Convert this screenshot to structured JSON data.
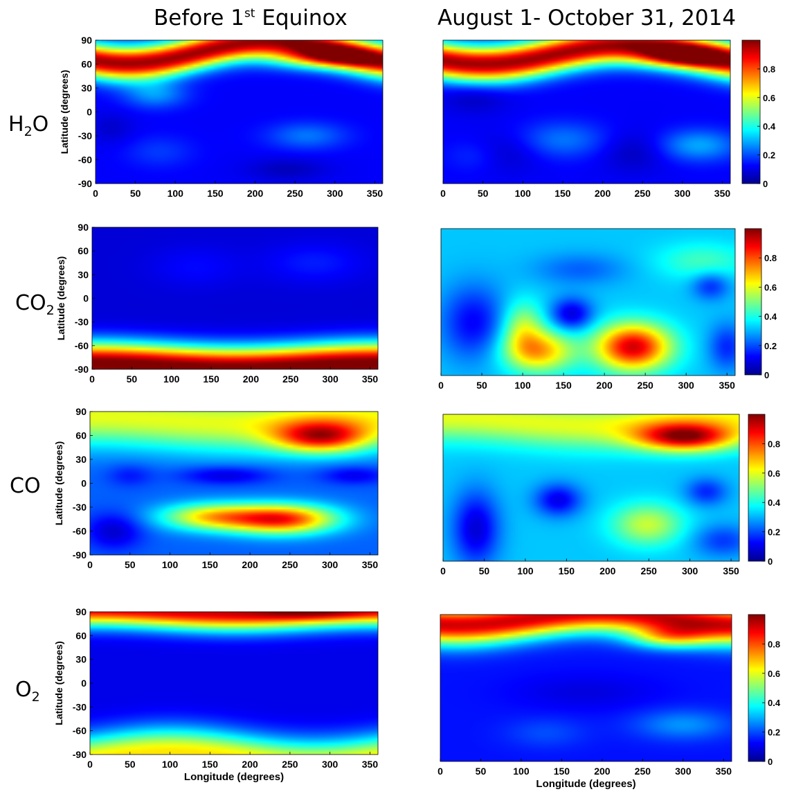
{
  "headers": {
    "left_main": "Before 1",
    "left_sup": "st",
    "left_tail": " Equinox",
    "right": "August 1- October 31, 2014"
  },
  "molecules": [
    {
      "main": "H",
      "sub": "2",
      "tail": "O"
    },
    {
      "main": "CO",
      "sub": "2",
      "tail": ""
    },
    {
      "main": "CO",
      "sub": "",
      "tail": ""
    },
    {
      "main": "O",
      "sub": "2",
      "tail": ""
    }
  ],
  "colors": {
    "jet": [
      "#00008f",
      "#0000ff",
      "#00ffff",
      "#ffff00",
      "#ff0000",
      "#800000"
    ]
  },
  "chart_data": [
    {
      "id": "h2o-before",
      "type": "heatmap",
      "title": "",
      "xlabel": "",
      "ylabel": "Latitude (degrees)",
      "xlim": [
        0,
        360
      ],
      "ylim": [
        -90,
        90
      ],
      "xticks": [
        0,
        50,
        100,
        150,
        200,
        250,
        300,
        350
      ],
      "yticks": [
        90,
        60,
        30,
        0,
        -30,
        -60,
        -90
      ],
      "colorbar": false,
      "background": 0.12,
      "bands": [
        {
          "amp": 0.85,
          "center": 75,
          "width": 15,
          "wave_amp": 14,
          "wave_phase": 220
        }
      ],
      "blobs": [
        {
          "x": 285,
          "y": 68,
          "sx": 45,
          "sy": 10,
          "v": 0.35
        },
        {
          "x": 75,
          "y": 22,
          "sx": 28,
          "sy": 12,
          "v": 0.15
        },
        {
          "x": 265,
          "y": -30,
          "sx": 35,
          "sy": 12,
          "v": 0.12
        },
        {
          "x": 80,
          "y": -50,
          "sx": 30,
          "sy": 14,
          "v": 0.06
        }
      ],
      "dark": [
        {
          "x": 240,
          "y": -72,
          "sx": 35,
          "sy": 10,
          "v": 0.07
        },
        {
          "x": 20,
          "y": -20,
          "sx": 20,
          "sy": 14,
          "v": 0.05
        }
      ]
    },
    {
      "id": "h2o-after",
      "type": "heatmap",
      "title": "",
      "xlabel": "",
      "ylabel": "",
      "xlim": [
        0,
        360
      ],
      "ylim": [
        -90,
        90
      ],
      "xticks": [
        0,
        50,
        100,
        150,
        200,
        250,
        300,
        350
      ],
      "yticks": [],
      "colorbar": true,
      "cbar_ticks": [
        0,
        0.2,
        0.4,
        0.6,
        0.8
      ],
      "background": 0.12,
      "bands": [
        {
          "amp": 0.85,
          "center": 72,
          "width": 16,
          "wave_amp": 12,
          "wave_phase": 230
        }
      ],
      "blobs": [
        {
          "x": 300,
          "y": 70,
          "sx": 40,
          "sy": 10,
          "v": 0.35
        },
        {
          "x": 320,
          "y": -42,
          "sx": 35,
          "sy": 14,
          "v": 0.17
        },
        {
          "x": 150,
          "y": -35,
          "sx": 40,
          "sy": 16,
          "v": 0.12
        },
        {
          "x": 40,
          "y": -55,
          "sx": 25,
          "sy": 14,
          "v": 0.05
        }
      ],
      "dark": [
        {
          "x": 40,
          "y": 20,
          "sx": 30,
          "sy": 15,
          "v": 0.07
        },
        {
          "x": 80,
          "y": -50,
          "sx": 30,
          "sy": 18,
          "v": 0.06
        },
        {
          "x": 240,
          "y": -50,
          "sx": 30,
          "sy": 18,
          "v": 0.07
        }
      ]
    },
    {
      "id": "co2-before",
      "type": "heatmap",
      "title": "",
      "xlabel": "",
      "ylabel": "Latitude (degrees)",
      "xlim": [
        0,
        360
      ],
      "ylim": [
        -90,
        90
      ],
      "xticks": [
        0,
        50,
        100,
        150,
        200,
        250,
        300,
        350
      ],
      "yticks": [
        90,
        60,
        30,
        0,
        -30,
        -60,
        -90
      ],
      "colorbar": false,
      "background": 0.08,
      "bands": [
        {
          "amp": 0.95,
          "center": -86,
          "width": 19,
          "wave_amp": 3,
          "wave_phase": 0
        }
      ],
      "blobs": [
        {
          "x": 280,
          "y": 45,
          "sx": 45,
          "sy": 18,
          "v": 0.07
        },
        {
          "x": 130,
          "y": 40,
          "sx": 40,
          "sy": 18,
          "v": 0.05
        }
      ],
      "dark": []
    },
    {
      "id": "co2-after",
      "type": "heatmap",
      "title": "",
      "xlabel": "",
      "ylabel": "",
      "xlim": [
        0,
        360
      ],
      "ylim": [
        -90,
        90
      ],
      "xticks": [
        0,
        50,
        100,
        150,
        200,
        250,
        300,
        350
      ],
      "yticks": [],
      "colorbar": true,
      "cbar_ticks": [
        0,
        0.2,
        0.4,
        0.6,
        0.8
      ],
      "background": 0.32,
      "bands": [],
      "blobs": [
        {
          "x": 235,
          "y": -55,
          "sx": 32,
          "sy": 20,
          "v": 0.6
        },
        {
          "x": 120,
          "y": -60,
          "sx": 30,
          "sy": 18,
          "v": 0.38
        },
        {
          "x": 100,
          "y": -30,
          "sx": 18,
          "sy": 22,
          "v": 0.22
        },
        {
          "x": 320,
          "y": 50,
          "sx": 40,
          "sy": 16,
          "v": 0.12
        }
      ],
      "dark": [
        {
          "x": 40,
          "y": -25,
          "sx": 28,
          "sy": 32,
          "v": 0.2
        },
        {
          "x": 160,
          "y": -15,
          "sx": 18,
          "sy": 14,
          "v": 0.24
        },
        {
          "x": 330,
          "y": 20,
          "sx": 16,
          "sy": 12,
          "v": 0.16
        },
        {
          "x": 350,
          "y": -55,
          "sx": 16,
          "sy": 20,
          "v": 0.16
        },
        {
          "x": 170,
          "y": 40,
          "sx": 40,
          "sy": 14,
          "v": 0.1
        }
      ]
    },
    {
      "id": "co-before",
      "type": "heatmap",
      "title": "",
      "xlabel": "",
      "ylabel": "Latitude (degrees)",
      "xlim": [
        0,
        360
      ],
      "ylim": [
        -90,
        90
      ],
      "xticks": [
        0,
        50,
        100,
        150,
        200,
        250,
        300,
        350
      ],
      "yticks": [
        90,
        60,
        30,
        0,
        -30,
        -60,
        -90
      ],
      "colorbar": false,
      "background": 0.22,
      "bands": [
        {
          "amp": 0.38,
          "center": 80,
          "width": 26,
          "wave_amp": 4,
          "wave_phase": 0
        }
      ],
      "blobs": [
        {
          "x": 290,
          "y": 58,
          "sx": 42,
          "sy": 14,
          "v": 0.5
        },
        {
          "x": 240,
          "y": -45,
          "sx": 48,
          "sy": 13,
          "v": 0.62
        },
        {
          "x": 150,
          "y": -42,
          "sx": 45,
          "sy": 12,
          "v": 0.4
        }
      ],
      "dark": [
        {
          "x": 170,
          "y": 10,
          "sx": 40,
          "sy": 8,
          "v": 0.14
        },
        {
          "x": 330,
          "y": 10,
          "sx": 30,
          "sy": 8,
          "v": 0.12
        },
        {
          "x": 30,
          "y": -60,
          "sx": 25,
          "sy": 16,
          "v": 0.15
        },
        {
          "x": 50,
          "y": 10,
          "sx": 20,
          "sy": 10,
          "v": 0.08
        }
      ]
    },
    {
      "id": "co-after",
      "type": "heatmap",
      "title": "",
      "xlabel": "",
      "ylabel": "",
      "xlim": [
        0,
        360
      ],
      "ylim": [
        -90,
        90
      ],
      "xticks": [
        0,
        50,
        100,
        150,
        200,
        250,
        300,
        350
      ],
      "yticks": [],
      "colorbar": true,
      "cbar_ticks": [
        0,
        0.2,
        0.4,
        0.6,
        0.8
      ],
      "background": 0.32,
      "bands": [
        {
          "amp": 0.28,
          "center": 82,
          "width": 20,
          "wave_amp": 5,
          "wave_phase": 0
        }
      ],
      "blobs": [
        {
          "x": 295,
          "y": 62,
          "sx": 42,
          "sy": 12,
          "v": 0.55
        },
        {
          "x": 248,
          "y": -45,
          "sx": 30,
          "sy": 18,
          "v": 0.25
        }
      ],
      "dark": [
        {
          "x": 40,
          "y": -50,
          "sx": 20,
          "sy": 32,
          "v": 0.24
        },
        {
          "x": 140,
          "y": -15,
          "sx": 20,
          "sy": 14,
          "v": 0.22
        },
        {
          "x": 320,
          "y": -5,
          "sx": 18,
          "sy": 12,
          "v": 0.16
        },
        {
          "x": 340,
          "y": -65,
          "sx": 25,
          "sy": 14,
          "v": 0.14
        }
      ]
    },
    {
      "id": "o2-before",
      "type": "heatmap",
      "title": "",
      "xlabel": "Longitude (degrees)",
      "ylabel": "Latitude (degrees)",
      "xlim": [
        0,
        360
      ],
      "ylim": [
        -90,
        90
      ],
      "xticks": [
        0,
        50,
        100,
        150,
        200,
        250,
        300,
        350
      ],
      "yticks": [
        90,
        60,
        30,
        0,
        -30,
        -60,
        -90
      ],
      "colorbar": false,
      "background": 0.1,
      "bands": [
        {
          "amp": 0.82,
          "center": 92,
          "width": 16,
          "wave_amp": 3,
          "wave_phase": 0
        },
        {
          "amp": 0.55,
          "center": -95,
          "width": 22,
          "wave_amp": 8,
          "wave_phase": 100
        }
      ],
      "blobs": [
        {
          "x": 280,
          "y": 88,
          "sx": 50,
          "sy": 6,
          "v": 0.12
        }
      ],
      "dark": []
    },
    {
      "id": "o2-after",
      "type": "heatmap",
      "title": "",
      "xlabel": "Longitude (degrees)",
      "ylabel": "",
      "xlim": [
        0,
        360
      ],
      "ylim": [
        -90,
        90
      ],
      "xticks": [
        0,
        50,
        100,
        150,
        200,
        250,
        300,
        350
      ],
      "yticks": [],
      "colorbar": true,
      "cbar_ticks": [
        0,
        0.2,
        0.4,
        0.6,
        0.8
      ],
      "background": 0.14,
      "bands": [
        {
          "amp": 0.78,
          "center": 85,
          "width": 17,
          "wave_amp": 8,
          "wave_phase": 200
        }
      ],
      "blobs": [
        {
          "x": 282,
          "y": 62,
          "sx": 35,
          "sy": 10,
          "v": 0.32
        },
        {
          "x": 300,
          "y": -45,
          "sx": 42,
          "sy": 13,
          "v": 0.13
        },
        {
          "x": 130,
          "y": -55,
          "sx": 35,
          "sy": 13,
          "v": 0.06
        }
      ],
      "dark": [
        {
          "x": 180,
          "y": -5,
          "sx": 60,
          "sy": 15,
          "v": 0.05
        }
      ]
    }
  ]
}
